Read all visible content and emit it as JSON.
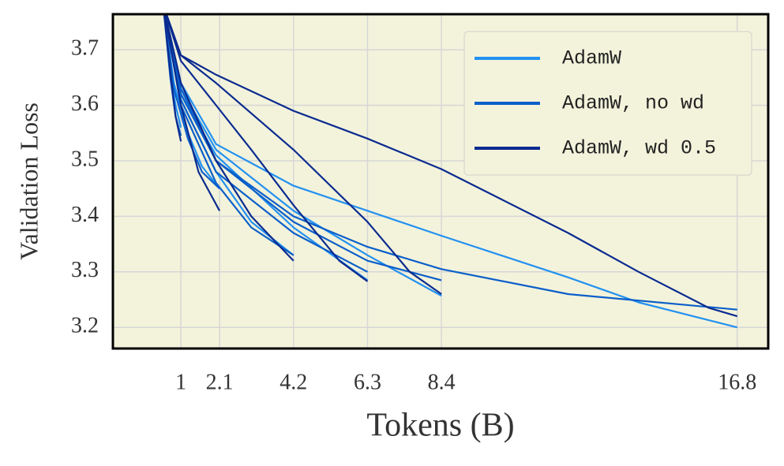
{
  "chart_data": {
    "type": "line",
    "xlabel": "Tokens (B)",
    "ylabel": "Validation  Loss",
    "xlim": [
      -0.93,
      17.68
    ],
    "ylim": [
      3.162,
      3.764
    ],
    "xticks": [
      1,
      2.1,
      4.2,
      6.3,
      8.4,
      16.8
    ],
    "yticks": [
      3.2,
      3.3,
      3.4,
      3.5,
      3.6,
      3.7
    ],
    "grid": true,
    "legend": "upper right",
    "series": [
      {
        "name": "AdamW",
        "color": "#2391f0",
        "runs": [
          {
            "x": [
              0.5,
              0.7,
              0.85,
              1
            ],
            "values": [
              3.78,
              3.66,
              3.6,
              3.56
            ]
          },
          {
            "x": [
              0.5,
              0.8,
              1.2,
              1.6,
              2.1
            ],
            "values": [
              3.78,
              3.64,
              3.55,
              3.49,
              3.45
            ]
          },
          {
            "x": [
              0.5,
              1,
              2,
              3,
              4.2
            ],
            "values": [
              3.78,
              3.61,
              3.48,
              3.39,
              3.33
            ]
          },
          {
            "x": [
              0.5,
              1,
              2,
              4.2,
              6.3
            ],
            "values": [
              3.78,
              3.62,
              3.51,
              3.38,
              3.285
            ]
          },
          {
            "x": [
              0.5,
              1,
              2,
              4.2,
              6.3,
              8.4
            ],
            "values": [
              3.78,
              3.63,
              3.52,
              3.41,
              3.33,
              3.257
            ]
          },
          {
            "x": [
              0.5,
              1,
              2,
              4.2,
              6.3,
              8.4,
              12,
              14,
              16.8
            ],
            "values": [
              3.78,
              3.64,
              3.53,
              3.455,
              3.41,
              3.365,
              3.29,
              3.245,
              3.2
            ]
          }
        ]
      },
      {
        "name": "AdamW, no wd",
        "color": "#0b5fc9",
        "runs": [
          {
            "x": [
              0.5,
              0.7,
              0.85,
              1
            ],
            "values": [
              3.78,
              3.65,
              3.58,
              3.545
            ]
          },
          {
            "x": [
              0.5,
              0.8,
              1.2,
              1.6,
              2.1
            ],
            "values": [
              3.78,
              3.63,
              3.54,
              3.48,
              3.45
            ]
          },
          {
            "x": [
              0.5,
              1,
              2,
              3,
              4.2
            ],
            "values": [
              3.78,
              3.6,
              3.46,
              3.38,
              3.33
            ]
          },
          {
            "x": [
              0.5,
              1,
              2,
              4.2,
              6.3
            ],
            "values": [
              3.78,
              3.61,
              3.48,
              3.37,
              3.3
            ]
          },
          {
            "x": [
              0.5,
              1,
              2,
              4.2,
              6.3,
              8.4
            ],
            "values": [
              3.78,
              3.62,
              3.5,
              3.39,
              3.32,
              3.285
            ]
          },
          {
            "x": [
              0.5,
              1,
              2,
              4.2,
              6.3,
              8.4,
              12,
              16.8
            ],
            "values": [
              3.78,
              3.63,
              3.5,
              3.4,
              3.345,
              3.305,
              3.26,
              3.232
            ]
          }
        ]
      },
      {
        "name": "AdamW, wd 0.5",
        "color": "#0b2b8f",
        "runs": [
          {
            "x": [
              0.5,
              0.7,
              0.85,
              1
            ],
            "values": [
              3.78,
              3.66,
              3.58,
              3.535
            ]
          },
          {
            "x": [
              0.5,
              1,
              1.5,
              2.1
            ],
            "values": [
              3.78,
              3.6,
              3.48,
              3.41
            ]
          },
          {
            "x": [
              0.5,
              1,
              2,
              3,
              4.2
            ],
            "values": [
              3.78,
              3.64,
              3.5,
              3.4,
              3.32
            ]
          },
          {
            "x": [
              0.5,
              1,
              2,
              3,
              4.2,
              5.5,
              6.3
            ],
            "values": [
              3.78,
              3.68,
              3.6,
              3.52,
              3.42,
              3.32,
              3.283
            ]
          },
          {
            "x": [
              0.5,
              1,
              2,
              4.2,
              6.3,
              7.5,
              8.4
            ],
            "values": [
              3.78,
              3.69,
              3.64,
              3.52,
              3.39,
              3.3,
              3.26
            ]
          },
          {
            "x": [
              0.5,
              1,
              2,
              4.2,
              6.3,
              8.4,
              12,
              14,
              16,
              16.8
            ],
            "values": [
              3.78,
              3.69,
              3.655,
              3.59,
              3.54,
              3.485,
              3.37,
              3.3,
              3.235,
              3.22
            ]
          }
        ]
      }
    ]
  }
}
